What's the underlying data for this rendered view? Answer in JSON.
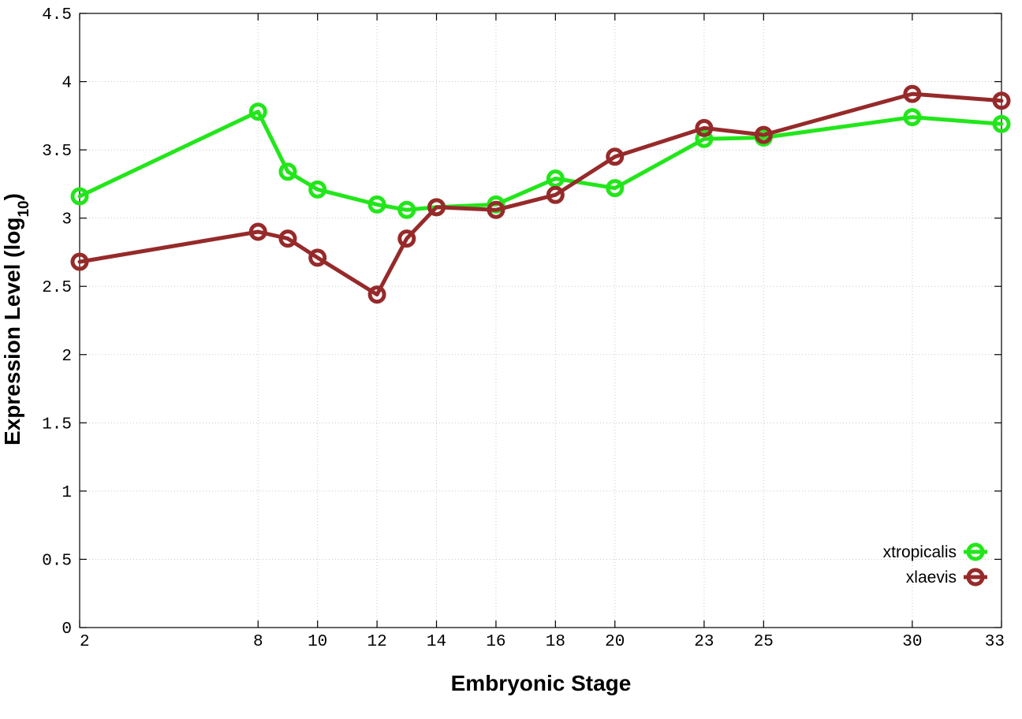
{
  "chart_data": {
    "type": "line",
    "xlabel": "Embryonic Stage",
    "ylabel": {
      "main": "Expression Level (log",
      "subscript": "10",
      "close": ")"
    },
    "x_ticks": [
      2,
      8,
      10,
      12,
      14,
      16,
      18,
      20,
      23,
      25,
      30,
      33
    ],
    "y_ticks": [
      "0",
      "0.5",
      "1",
      "1.5",
      "2",
      "2.5",
      "3",
      "3.5",
      "4",
      "4.5"
    ],
    "xlim": [
      2,
      33
    ],
    "ylim": [
      0,
      4.5
    ],
    "grid": true,
    "legend_position": "bottom-right",
    "series": [
      {
        "name": "xtropicalis",
        "color": "#22e61a",
        "x": [
          2,
          8,
          9,
          10,
          12,
          13,
          14,
          16,
          18,
          20,
          23,
          25,
          30,
          33
        ],
        "y": [
          3.16,
          3.78,
          3.34,
          3.21,
          3.1,
          3.06,
          3.08,
          3.1,
          3.29,
          3.22,
          3.58,
          3.59,
          3.74,
          3.69
        ]
      },
      {
        "name": "xlaevis",
        "color": "#962a2a",
        "x": [
          2,
          8,
          9,
          10,
          12,
          13,
          14,
          16,
          18,
          20,
          23,
          25,
          30,
          33
        ],
        "y": [
          2.68,
          2.9,
          2.85,
          2.71,
          2.44,
          2.85,
          3.08,
          3.06,
          3.17,
          3.45,
          3.66,
          3.61,
          3.91,
          3.86
        ]
      }
    ]
  }
}
